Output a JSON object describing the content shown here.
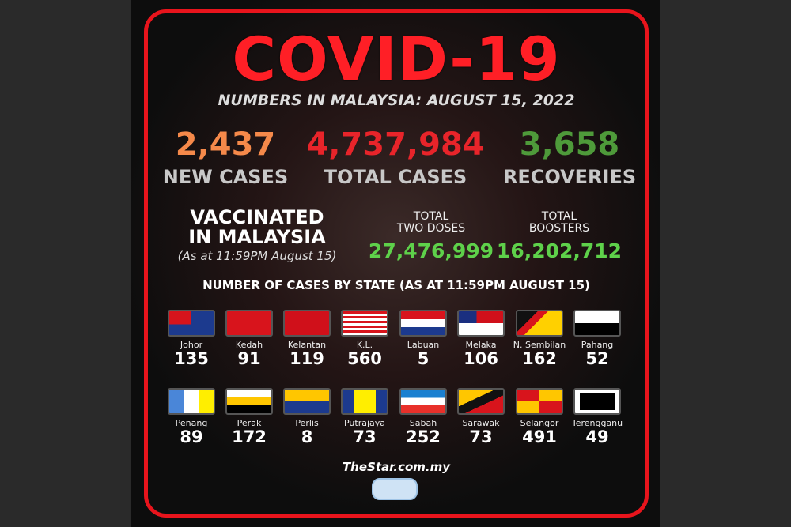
{
  "title": "COVID-19",
  "subtitle": "NUMBERS IN MALAYSIA: AUGUST 15, 2022",
  "stats": [
    {
      "value": "2,437",
      "label": "NEW CASES",
      "color": "#f5894a"
    },
    {
      "value": "4,737,984",
      "label": "TOTAL CASES",
      "color": "#e8242a"
    },
    {
      "value": "3,658",
      "label": "RECOVERIES",
      "color": "#4e9a3a"
    }
  ],
  "vaccination": {
    "heading_1": "VACCINATED",
    "heading_2": "IN MALAYSIA",
    "note": "(As at 11:59PM August 15)",
    "two_doses_label_1": "TOTAL",
    "two_doses_label_2": "TWO DOSES",
    "two_doses": "27,476,999",
    "boosters_label_1": "TOTAL",
    "boosters_label_2": "BOOSTERS",
    "boosters": "16,202,712"
  },
  "states_heading": "NUMBER OF CASES BY STATE (AS AT 11:59PM AUGUST 15)",
  "states": [
    {
      "name": "Johor",
      "cases": "135"
    },
    {
      "name": "Kedah",
      "cases": "91"
    },
    {
      "name": "Kelantan",
      "cases": "119"
    },
    {
      "name": "K.L.",
      "cases": "560"
    },
    {
      "name": "Labuan",
      "cases": "5"
    },
    {
      "name": "Melaka",
      "cases": "106"
    },
    {
      "name": "N. Sembilan",
      "cases": "162"
    },
    {
      "name": "Pahang",
      "cases": "52"
    },
    {
      "name": "Penang",
      "cases": "89"
    },
    {
      "name": "Perak",
      "cases": "172"
    },
    {
      "name": "Perlis",
      "cases": "8"
    },
    {
      "name": "Putrajaya",
      "cases": "73"
    },
    {
      "name": "Sabah",
      "cases": "252"
    },
    {
      "name": "Sarawak",
      "cases": "73"
    },
    {
      "name": "Selangor",
      "cases": "491"
    },
    {
      "name": "Terengganu",
      "cases": "49"
    }
  ],
  "logo": "TheStar.com.my",
  "colors": {
    "frame": "#e8141c",
    "title": "#ff1f26",
    "vaccine_numbers": "#5ed14a"
  }
}
